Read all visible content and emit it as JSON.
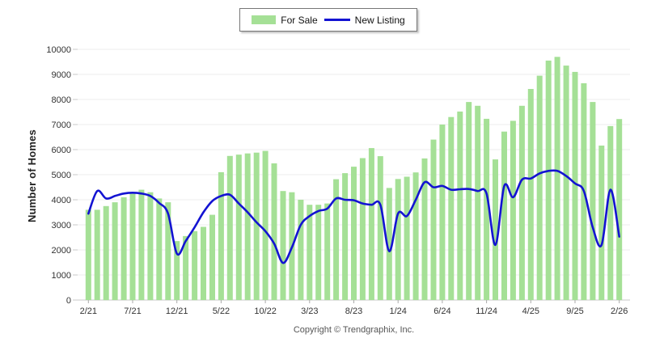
{
  "legend": {
    "for_sale": "For Sale",
    "new_listing": "New Listing"
  },
  "axes": {
    "y_title": "Number of Homes",
    "y_ticks": [
      0,
      1000,
      2000,
      3000,
      4000,
      5000,
      6000,
      7000,
      8000,
      9000,
      10000
    ],
    "x_tick_labels": [
      "2/21",
      "7/21",
      "12/21",
      "5/22",
      "10/22",
      "3/23",
      "8/23",
      "1/24",
      "6/24",
      "11/24",
      "4/25",
      "9/25",
      "2/26"
    ],
    "x_tick_indices": [
      0,
      5,
      10,
      15,
      20,
      25,
      30,
      35,
      40,
      45,
      50,
      55,
      60
    ]
  },
  "footer": {
    "copyright": "Copyright © Trendgraphix, Inc."
  },
  "colors": {
    "bar": "#a5e096",
    "line": "#1313d2",
    "grid": "#ececec",
    "axis": "#c9c9c9",
    "tick": "#aaaaaa",
    "label_text": "#333333"
  },
  "chart_data": {
    "type": "bar",
    "title": "",
    "ylabel": "Number of Homes",
    "ylim": [
      0,
      10000
    ],
    "y_step": 1000,
    "grid": "horizontal",
    "legend_position": "top-center",
    "categories": [
      "2/21",
      "3/21",
      "4/21",
      "5/21",
      "6/21",
      "7/21",
      "8/21",
      "9/21",
      "10/21",
      "11/21",
      "12/21",
      "1/22",
      "2/22",
      "3/22",
      "4/22",
      "5/22",
      "6/22",
      "7/22",
      "8/22",
      "9/22",
      "10/22",
      "11/22",
      "12/22",
      "1/23",
      "2/23",
      "3/23",
      "4/23",
      "5/23",
      "6/23",
      "7/23",
      "8/23",
      "9/23",
      "10/23",
      "11/23",
      "12/23",
      "1/24",
      "2/24",
      "3/24",
      "4/24",
      "5/24",
      "6/24",
      "7/24",
      "8/24",
      "9/24",
      "10/24",
      "11/24",
      "12/24",
      "1/25",
      "2/25",
      "3/25",
      "4/25",
      "5/25",
      "6/25",
      "7/25",
      "8/25",
      "9/25",
      "10/25",
      "11/25",
      "12/25",
      "1/26",
      "2/26"
    ],
    "series": [
      {
        "name": "For Sale",
        "type": "bar",
        "values": [
          3600,
          3600,
          3750,
          3900,
          4100,
          4250,
          4400,
          4300,
          4050,
          3900,
          2350,
          2550,
          2750,
          2920,
          3400,
          5100,
          5750,
          5800,
          5850,
          5880,
          5950,
          5450,
          4350,
          4300,
          4000,
          3800,
          3800,
          3850,
          4820,
          5060,
          5320,
          5660,
          6060,
          5740,
          4470,
          4830,
          4920,
          5090,
          5650,
          6400,
          7000,
          7300,
          7520,
          7900,
          7750,
          7230,
          5610,
          6720,
          7150,
          7750,
          8420,
          8950,
          9550,
          9700,
          9350,
          9100,
          8650,
          7900,
          6160,
          6940,
          7220
        ]
      },
      {
        "name": "New Listing",
        "type": "line",
        "values": [
          3450,
          4350,
          4050,
          4150,
          4250,
          4280,
          4250,
          4150,
          3870,
          3450,
          1850,
          2350,
          2900,
          3500,
          3950,
          4150,
          4200,
          3850,
          3500,
          3100,
          2750,
          2250,
          1480,
          2100,
          3000,
          3350,
          3550,
          3650,
          4050,
          4000,
          3980,
          3850,
          3800,
          3800,
          1950,
          3450,
          3350,
          4000,
          4700,
          4500,
          4550,
          4400,
          4420,
          4430,
          4350,
          4250,
          2200,
          4550,
          4100,
          4800,
          4850,
          5050,
          5150,
          5150,
          4950,
          4650,
          4350,
          2900,
          2200,
          4400,
          2530
        ]
      }
    ]
  }
}
